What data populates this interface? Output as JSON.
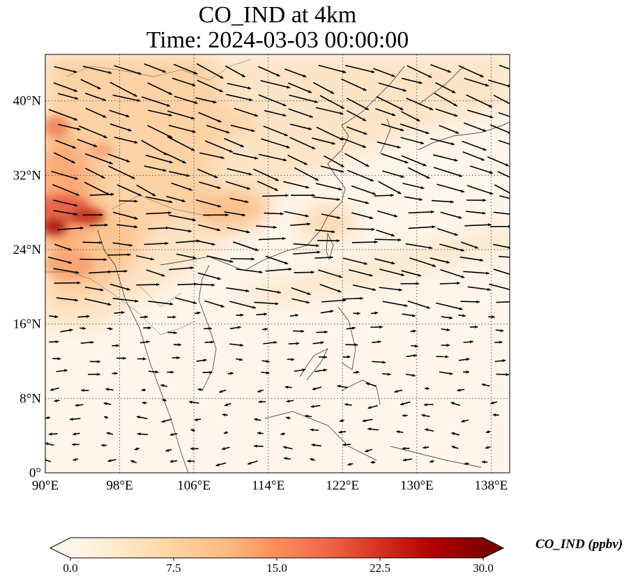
{
  "title": {
    "line1": "CO_IND at 4km",
    "line2": "Time: 2024-03-03 00:00:00"
  },
  "map": {
    "projection": "PlateCarree",
    "lon_range": [
      90,
      140
    ],
    "lat_range": [
      0,
      45
    ],
    "lon_ticks": [
      "90°E",
      "98°E",
      "106°E",
      "114°E",
      "122°E",
      "130°E",
      "138°E"
    ],
    "lat_ticks": [
      "0°",
      "8°N",
      "16°N",
      "24°N",
      "32°N",
      "40°N"
    ],
    "gridlines": "dotted",
    "field": "CO_IND",
    "overlay": "wind vectors (quiver)"
  },
  "colorbar": {
    "label": "CO_IND (ppbv)",
    "min": 0.0,
    "max": 30.0,
    "ticks": [
      "0.0",
      "7.5",
      "15.0",
      "22.5",
      "30.0"
    ],
    "extend": "both",
    "colormap": "OrRd",
    "colors": [
      "#fff7ec",
      "#fee8c8",
      "#fdd49e",
      "#fdbb84",
      "#fc8d59",
      "#ef6548",
      "#d7301f",
      "#b30000",
      "#7f0000"
    ]
  }
}
